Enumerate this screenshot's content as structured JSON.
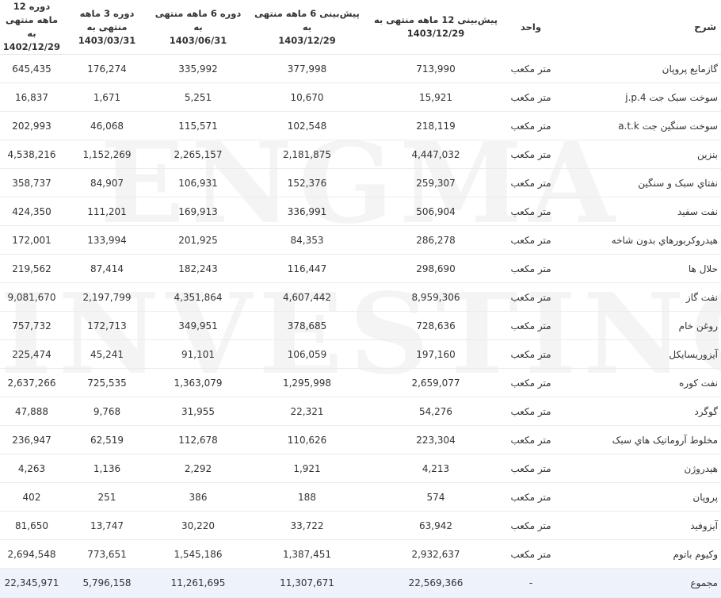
{
  "watermark": {
    "line1": "ENGMA",
    "line2": "INVESTING"
  },
  "header": {
    "desc": "شرح",
    "unit": "واحد",
    "forecast_12": {
      "line1": "پیش‌بینی 12 ماهه منتهی به",
      "line2": "1403/12/29"
    },
    "forecast_6": {
      "line1": "پیش‌بینی 6 ماهه منتهی به",
      "line2": "1403/12/29"
    },
    "period_6": {
      "line1": "دوره 6 ماهه منتهی به",
      "line2": "1403/06/31"
    },
    "period_3": {
      "line1": "دوره 3 ماهه منتهی به",
      "line2": "1403/03/31"
    },
    "period_12": {
      "line1": "دوره 12 ماهه منتهی به",
      "line2": "1402/12/29"
    }
  },
  "rows": [
    {
      "desc": "گازمايع پروپان",
      "unit": "متر مکعب",
      "forecast_12": "713,990",
      "forecast_6": "377,998",
      "period_6": "335,992",
      "period_3": "176,274",
      "period_12": "645,435"
    },
    {
      "desc": "سوخت سبک جت j.p.4",
      "unit": "متر مکعب",
      "forecast_12": "15,921",
      "forecast_6": "10,670",
      "period_6": "5,251",
      "period_3": "1,671",
      "period_12": "16,837"
    },
    {
      "desc": "سوخت سنگين جت a.t.k",
      "unit": "متر مکعب",
      "forecast_12": "218,119",
      "forecast_6": "102,548",
      "period_6": "115,571",
      "period_3": "46,068",
      "period_12": "202,993"
    },
    {
      "desc": "بنزين",
      "unit": "متر مکعب",
      "forecast_12": "4,447,032",
      "forecast_6": "2,181,875",
      "period_6": "2,265,157",
      "period_3": "1,152,269",
      "period_12": "4,538,216"
    },
    {
      "desc": "نفتاي سبک و سنگين",
      "unit": "متر مکعب",
      "forecast_12": "259,307",
      "forecast_6": "152,376",
      "period_6": "106,931",
      "period_3": "84,907",
      "period_12": "358,737"
    },
    {
      "desc": "نفت سفيد",
      "unit": "متر مکعب",
      "forecast_12": "506,904",
      "forecast_6": "336,991",
      "period_6": "169,913",
      "period_3": "111,201",
      "period_12": "424,350"
    },
    {
      "desc": "هيدروکربورهاي بدون شاخه",
      "unit": "متر مکعب",
      "forecast_12": "286,278",
      "forecast_6": "84,353",
      "period_6": "201,925",
      "period_3": "133,994",
      "period_12": "172,001"
    },
    {
      "desc": "حلال ها",
      "unit": "متر مکعب",
      "forecast_12": "298,690",
      "forecast_6": "116,447",
      "period_6": "182,243",
      "period_3": "87,414",
      "period_12": "219,562"
    },
    {
      "desc": "نفت گاز",
      "unit": "متر مکعب",
      "forecast_12": "8,959,306",
      "forecast_6": "4,607,442",
      "period_6": "4,351,864",
      "period_3": "2,197,799",
      "period_12": "9,081,670"
    },
    {
      "desc": "روغن خام",
      "unit": "متر مکعب",
      "forecast_12": "728,636",
      "forecast_6": "378,685",
      "period_6": "349,951",
      "period_3": "172,713",
      "period_12": "757,732"
    },
    {
      "desc": "آيزوريسايکل",
      "unit": "متر مکعب",
      "forecast_12": "197,160",
      "forecast_6": "106,059",
      "period_6": "91,101",
      "period_3": "45,241",
      "period_12": "225,474"
    },
    {
      "desc": "نفت کوره",
      "unit": "متر مکعب",
      "forecast_12": "2,659,077",
      "forecast_6": "1,295,998",
      "period_6": "1,363,079",
      "period_3": "725,535",
      "period_12": "2,637,266"
    },
    {
      "desc": "گوگرد",
      "unit": "متر مکعب",
      "forecast_12": "54,276",
      "forecast_6": "22,321",
      "period_6": "31,955",
      "period_3": "9,768",
      "period_12": "47,888"
    },
    {
      "desc": "مخلوط آروماتيک هاي سبک",
      "unit": "متر مکعب",
      "forecast_12": "223,304",
      "forecast_6": "110,626",
      "period_6": "112,678",
      "period_3": "62,519",
      "period_12": "236,947"
    },
    {
      "desc": "هيدروژن",
      "unit": "متر مکعب",
      "forecast_12": "4,213",
      "forecast_6": "1,921",
      "period_6": "2,292",
      "period_3": "1,136",
      "period_12": "4,263"
    },
    {
      "desc": "پروپان",
      "unit": "متر مکعب",
      "forecast_12": "574",
      "forecast_6": "188",
      "period_6": "386",
      "period_3": "251",
      "period_12": "402"
    },
    {
      "desc": "آيزوفيد",
      "unit": "متر مکعب",
      "forecast_12": "63,942",
      "forecast_6": "33,722",
      "period_6": "30,220",
      "period_3": "13,747",
      "period_12": "81,650"
    },
    {
      "desc": "وکيوم باتوم",
      "unit": "متر مکعب",
      "forecast_12": "2,932,637",
      "forecast_6": "1,387,451",
      "period_6": "1,545,186",
      "period_3": "773,651",
      "period_12": "2,694,548"
    }
  ],
  "total": {
    "desc": "مجموع",
    "unit": "-",
    "forecast_12": "22,569,366",
    "forecast_6": "11,307,671",
    "period_6": "11,261,695",
    "period_3": "5,796,158",
    "period_12": "22,345,971"
  }
}
